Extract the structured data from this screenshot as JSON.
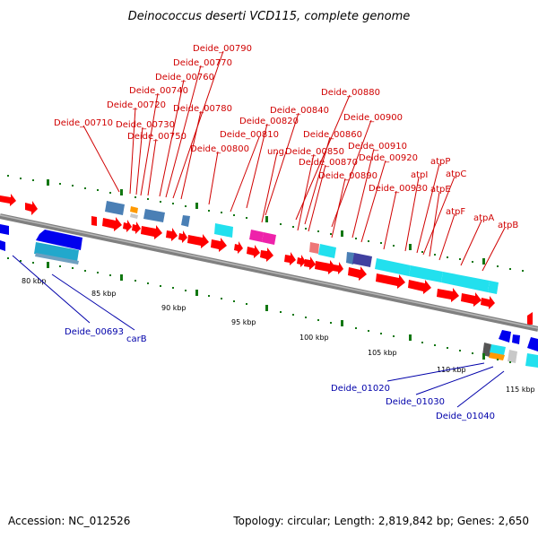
{
  "title": "Deinococcus deserti VCD115, complete genome",
  "accession": "Accession: NC_012526",
  "topology": "Topology: circular; Length: 2,819,842 bp; Genes: 2,650",
  "colors": {
    "forward_gene": "#ff0000",
    "reverse_gene": "#0000ee",
    "backbone": "#808080",
    "tick": "#117711",
    "label_top": "#d00000",
    "label_bottom": "#0000aa",
    "cyan": "#22e0ee",
    "steel_blue": "#4a7fb5",
    "magenta": "#ee22aa",
    "orange": "#ff9900",
    "navy": "#4040a0",
    "salmon": "#ee7777"
  },
  "kbp_labels": [
    "80 kbp",
    "85 kbp",
    "90 kbp",
    "95 kbp",
    "100 kbp",
    "105 kbp",
    "110 kbp",
    "115 kbp"
  ],
  "top_labels": [
    "Deide_00790",
    "Deide_00770",
    "Deide_00760",
    "Deide_00740",
    "Deide_00720",
    "Deide_00710",
    "Deide_00730",
    "Deide_00750",
    "Deide_00780",
    "Deide_00800",
    "Deide_00820",
    "Deide_00810",
    "Deide_00840",
    "ung",
    "Deide_00880",
    "Deide_00900",
    "Deide_00860",
    "Deide_00850",
    "Deide_00870",
    "Deide_00910",
    "Deide_00890",
    "Deide_00920",
    "atpP",
    "atpI",
    "atpC",
    "atpE",
    "Deide_00930",
    "atpF",
    "atpA",
    "atpB"
  ],
  "bottom_labels": [
    "Deide_00693",
    "carB",
    "Deide_01020",
    "Deide_01030",
    "Deide_01040"
  ]
}
